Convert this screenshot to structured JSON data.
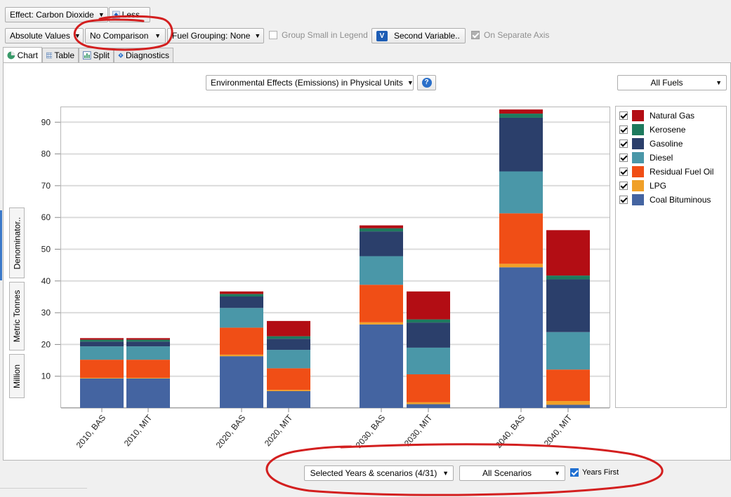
{
  "toolbar1": {
    "effect_label": "Effect: Carbon Dioxide",
    "less_label": "Less..."
  },
  "toolbar2": {
    "absolute_values": "Absolute Values",
    "no_comparison": "No Comparison",
    "fuel_grouping": "Fuel Grouping: None",
    "group_small": "Group Small in Legend",
    "second_variable": "Second Variable..",
    "separate_axis": "On Separate Axis"
  },
  "tabs": [
    {
      "label": "Chart"
    },
    {
      "label": "Table"
    },
    {
      "label": "Split"
    },
    {
      "label": "Diagnostics"
    }
  ],
  "chart_header": {
    "units_select": "Environmental Effects (Emissions) in Physical Units",
    "fuels_select": "All Fuels"
  },
  "side_tabs": {
    "denominator": "Denominator..",
    "units": "Metric Tonnes",
    "scale": "Million"
  },
  "bottom": {
    "years_select": "Selected Years & scenarios (4/31)",
    "scenarios_select": "All Scenarios",
    "years_first": "Years First"
  },
  "colors": {
    "Natural Gas": "#b30d14",
    "Kerosene": "#1e7a5e",
    "Gasoline": "#2b3f6b",
    "Diesel": "#4a97a8",
    "Residual Fuel Oil": "#f04e16",
    "LPG": "#f0a028",
    "Coal Bituminous": "#4464a1"
  },
  "chart_data": {
    "type": "bar",
    "stacked": true,
    "categories": [
      "2010, BAS",
      "2010, MIT",
      "2020, BAS",
      "2020, MIT",
      "2030, BAS",
      "2030, MIT",
      "2040, BAS",
      "2040, MIT"
    ],
    "yticks": [
      10,
      20,
      30,
      40,
      50,
      60,
      70,
      80,
      90
    ],
    "ylim": [
      0,
      95
    ],
    "series": [
      {
        "name": "Coal Bituminous",
        "values": [
          9.3,
          9.3,
          16.3,
          5.3,
          26.3,
          1.2,
          44.3,
          1.0
        ]
      },
      {
        "name": "LPG",
        "values": [
          0.2,
          0.2,
          0.5,
          0.4,
          0.7,
          0.6,
          1.1,
          1.2
        ]
      },
      {
        "name": "Residual Fuel Oil",
        "values": [
          5.7,
          5.7,
          8.5,
          6.8,
          11.8,
          8.8,
          15.9,
          9.9
        ]
      },
      {
        "name": "Diesel",
        "values": [
          4.2,
          4.2,
          6.2,
          5.8,
          9.0,
          8.4,
          13.2,
          11.8
        ]
      },
      {
        "name": "Gasoline",
        "values": [
          1.5,
          1.5,
          3.6,
          3.5,
          7.8,
          7.9,
          16.9,
          16.6
        ]
      },
      {
        "name": "Kerosene",
        "values": [
          0.6,
          0.6,
          0.8,
          0.8,
          1.0,
          1.0,
          1.3,
          1.2
        ]
      },
      {
        "name": "Natural Gas",
        "values": [
          0.5,
          0.5,
          0.8,
          4.8,
          0.9,
          8.8,
          1.3,
          14.3
        ]
      }
    ],
    "legend": [
      "Natural  Gas",
      "Kerosene",
      "Gasoline",
      "Diesel",
      "Residual Fuel Oil",
      "LPG",
      "Coal Bituminous"
    ],
    "legend_position": "right",
    "grid": true
  }
}
